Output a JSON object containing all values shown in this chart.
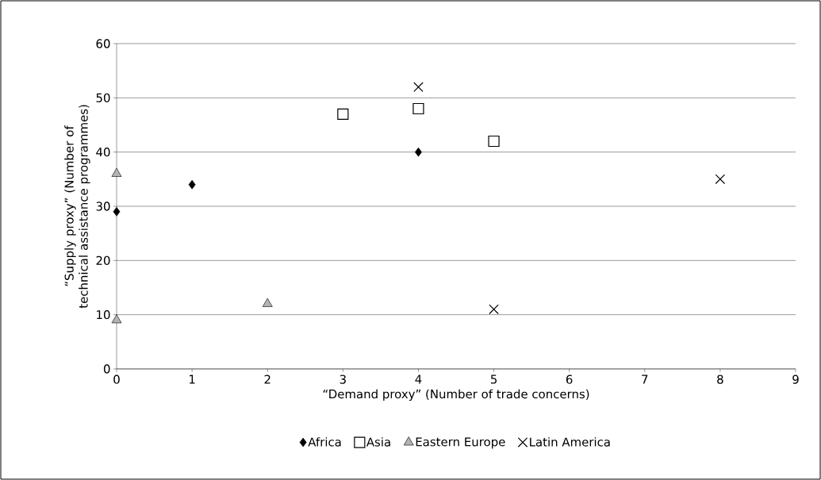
{
  "chart_data": {
    "type": "scatter",
    "xlabel": "“Demand proxy” (Number of trade concerns)",
    "ylabel": "“Supply proxy” (Number of technical assistance programmes)",
    "series": [
      {
        "name": "Africa",
        "color": "#000000",
        "marker": "diamond",
        "x": [
          0,
          1,
          4
        ],
        "values": [
          29,
          34,
          40
        ]
      },
      {
        "name": "Asia",
        "color": "#000000",
        "marker": "square",
        "x": [
          3,
          4,
          5
        ],
        "values": [
          47,
          48,
          42
        ]
      },
      {
        "name": "Eastern Europe",
        "color": "#b3b3b3",
        "marker": "triangle",
        "x": [
          0,
          0,
          2
        ],
        "values": [
          36,
          9,
          12
        ]
      },
      {
        "name": "Latin America",
        "color": "#000000",
        "marker": "cross",
        "x": [
          4,
          8,
          5
        ],
        "values": [
          52,
          35,
          11
        ]
      }
    ],
    "xlim": [
      0,
      9
    ],
    "ylim": [
      0,
      60
    ],
    "xticks": [
      0,
      1,
      2,
      3,
      4,
      5,
      6,
      7,
      8,
      9
    ],
    "yticks": [
      0,
      10,
      20,
      30,
      40,
      50,
      60
    ],
    "grid": "y",
    "legend": "bottom"
  }
}
